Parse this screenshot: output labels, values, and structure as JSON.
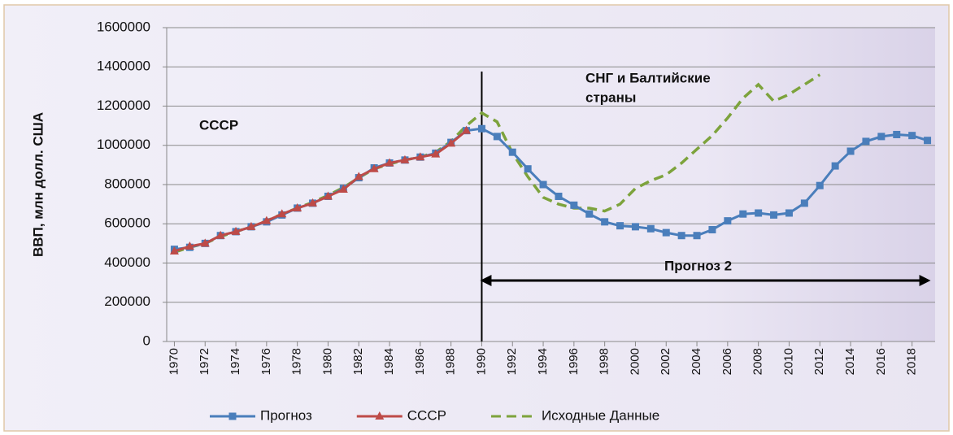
{
  "chart_data": {
    "type": "line",
    "y_label": "ВВП, млн долл. США",
    "x": [
      1970,
      1971,
      1972,
      1973,
      1974,
      1975,
      1976,
      1977,
      1978,
      1979,
      1980,
      1981,
      1982,
      1983,
      1984,
      1985,
      1986,
      1987,
      1988,
      1989,
      1990,
      1991,
      1992,
      1993,
      1994,
      1995,
      1996,
      1997,
      1998,
      1999,
      2000,
      2001,
      2002,
      2003,
      2004,
      2005,
      2006,
      2007,
      2008,
      2009,
      2010,
      2011,
      2012,
      2013,
      2014,
      2015,
      2016,
      2017,
      2018,
      2019
    ],
    "xlim": [
      1969.5,
      2019.5
    ],
    "xticks": [
      1970,
      1972,
      1974,
      1976,
      1978,
      1980,
      1982,
      1984,
      1986,
      1988,
      1990,
      1992,
      1994,
      1996,
      1998,
      2000,
      2002,
      2004,
      2006,
      2008,
      2010,
      2012,
      2014,
      2016,
      2018
    ],
    "ylim": [
      0,
      1600000
    ],
    "yticks": [
      0,
      200000,
      400000,
      600000,
      800000,
      1000000,
      1200000,
      1400000,
      1600000
    ],
    "grid": true,
    "series": [
      {
        "name": "Прогноз",
        "color": "#4a7ebb",
        "marker": "square",
        "dash": false,
        "values": [
          470000,
          480000,
          500000,
          540000,
          560000,
          585000,
          610000,
          645000,
          680000,
          705000,
          740000,
          780000,
          835000,
          885000,
          910000,
          925000,
          940000,
          960000,
          1015000,
          1075000,
          1085000,
          1045000,
          965000,
          880000,
          800000,
          740000,
          695000,
          650000,
          610000,
          590000,
          585000,
          575000,
          555000,
          540000,
          540000,
          570000,
          615000,
          650000,
          655000,
          645000,
          655000,
          705000,
          795000,
          895000,
          970000,
          1020000,
          1045000,
          1055000,
          1050000,
          1025000
        ]
      },
      {
        "name": "СССР",
        "color": "#be4b48",
        "marker": "triangle",
        "dash": false,
        "values": [
          460000,
          485000,
          500000,
          540000,
          560000,
          585000,
          615000,
          650000,
          680000,
          705000,
          740000,
          775000,
          840000,
          880000,
          910000,
          925000,
          940000,
          955000,
          1010000,
          1075000,
          null,
          null,
          null,
          null,
          null,
          null,
          null,
          null,
          null,
          null,
          null,
          null,
          null,
          null,
          null,
          null,
          null,
          null,
          null,
          null,
          null,
          null,
          null,
          null,
          null,
          null,
          null,
          null,
          null,
          null
        ]
      },
      {
        "name": "Исходные Данные",
        "color": "#7da33c",
        "marker": "none",
        "dash": true,
        "values": [
          455000,
          480000,
          500000,
          535000,
          560000,
          585000,
          615000,
          650000,
          680000,
          710000,
          745000,
          785000,
          835000,
          880000,
          905000,
          925000,
          940000,
          965000,
          1020000,
          1100000,
          1165000,
          1120000,
          960000,
          840000,
          735000,
          700000,
          680000,
          680000,
          665000,
          700000,
          780000,
          820000,
          850000,
          910000,
          980000,
          1050000,
          1140000,
          1240000,
          1310000,
          1225000,
          1260000,
          1310000,
          1360000,
          null,
          null,
          null,
          null,
          null,
          null,
          null
        ]
      }
    ],
    "annotations": [
      {
        "lines": [
          "СССР"
        ]
      },
      {
        "lines": [
          "СНГ и Балтийские",
          "страны"
        ]
      },
      {
        "lines": [
          "Прогноз 2"
        ]
      }
    ]
  }
}
